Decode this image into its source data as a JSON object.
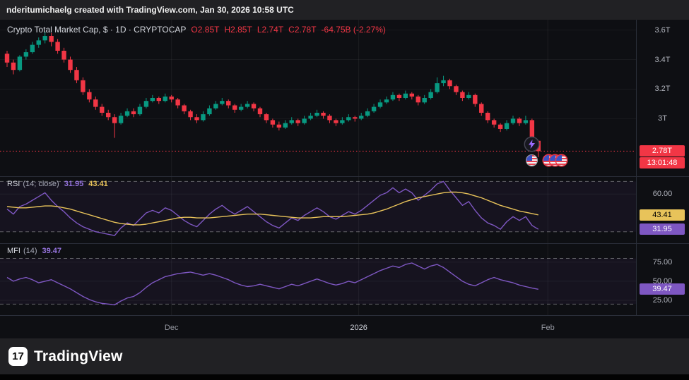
{
  "topbar": {
    "attribution": "nderitumichaelg created with TradingView.com, Jan 30, 2026 10:58 UTC"
  },
  "main_legend": {
    "title": "Crypto Total Market Cap, $ · 1D · CRYPTOCAP",
    "open": "O2.85T",
    "high": "H2.85T",
    "low": "L2.74T",
    "close": "C2.78T",
    "change": "-64.75B (-2.27%)"
  },
  "rsi_legend": {
    "title": "RSI",
    "params": "(14; close)",
    "value": "31.95",
    "ma_value": "43.41"
  },
  "mfi_legend": {
    "title": "MFI",
    "params": "(14)",
    "value": "39.47"
  },
  "footer": {
    "brand": "TradingView",
    "logo_mark": "17"
  },
  "icons": {
    "lightning-event-icon": "purple lightning bolt in dark circle",
    "us-flag-event-icon": "red/white striped circle with blue corner"
  },
  "colors": {
    "background": "#0e0f13",
    "bar": "#212124",
    "up": "#089981",
    "down": "#f23645",
    "purple": "#7e57c2",
    "yellow": "#e8c35a",
    "axis_text": "#b2b5be"
  },
  "chart_data": [
    {
      "type": "candlestick",
      "pane": "price",
      "title": "Crypto Total Market Cap",
      "symbol": "CRYPTOCAP",
      "timeframe": "1D",
      "ylim": [
        2.61,
        3.67
      ],
      "yticks": [
        {
          "label": "3.6T",
          "value": 3.6
        },
        {
          "label": "3.4T",
          "value": 3.4
        },
        {
          "label": "3.2T",
          "value": 3.2
        },
        {
          "label": "3T",
          "value": 3.0
        }
      ],
      "xticks": [
        {
          "label": "Dec",
          "index": 26
        },
        {
          "label": "2026",
          "index": 55.6,
          "major": true
        },
        {
          "label": "Feb",
          "index": 85.5
        }
      ],
      "last_price": {
        "value": 2.78,
        "label": "2.78T",
        "countdown": "13:01:48",
        "color": "#f23645"
      },
      "colors": {
        "up": "#089981",
        "down": "#f23645"
      },
      "candles": [
        [
          3.44,
          3.46,
          3.35,
          3.38
        ],
        [
          3.38,
          3.4,
          3.3,
          3.33
        ],
        [
          3.33,
          3.43,
          3.32,
          3.42
        ],
        [
          3.42,
          3.47,
          3.4,
          3.45
        ],
        [
          3.45,
          3.52,
          3.44,
          3.5
        ],
        [
          3.5,
          3.55,
          3.48,
          3.53
        ],
        [
          3.53,
          3.59,
          3.51,
          3.56
        ],
        [
          3.56,
          3.58,
          3.49,
          3.52
        ],
        [
          3.52,
          3.54,
          3.44,
          3.46
        ],
        [
          3.46,
          3.48,
          3.38,
          3.4
        ],
        [
          3.4,
          3.42,
          3.31,
          3.33
        ],
        [
          3.33,
          3.35,
          3.24,
          3.26
        ],
        [
          3.26,
          3.28,
          3.16,
          3.18
        ],
        [
          3.18,
          3.2,
          3.11,
          3.13
        ],
        [
          3.13,
          3.15,
          3.06,
          3.08
        ],
        [
          3.08,
          3.1,
          3.02,
          3.04
        ],
        [
          3.04,
          3.06,
          2.99,
          3.01
        ],
        [
          3.01,
          3.03,
          2.87,
          2.97
        ],
        [
          2.97,
          3.04,
          2.96,
          3.02
        ],
        [
          3.02,
          3.07,
          3.01,
          3.05
        ],
        [
          3.05,
          3.07,
          3.01,
          3.03
        ],
        [
          3.03,
          3.1,
          3.02,
          3.08
        ],
        [
          3.08,
          3.14,
          3.07,
          3.12
        ],
        [
          3.12,
          3.16,
          3.11,
          3.14
        ],
        [
          3.14,
          3.15,
          3.1,
          3.12
        ],
        [
          3.12,
          3.17,
          3.11,
          3.15
        ],
        [
          3.15,
          3.16,
          3.11,
          3.13
        ],
        [
          3.13,
          3.14,
          3.07,
          3.09
        ],
        [
          3.09,
          3.1,
          3.03,
          3.05
        ],
        [
          3.05,
          3.06,
          2.99,
          3.01
        ],
        [
          3.01,
          3.03,
          2.97,
          2.99
        ],
        [
          2.99,
          3.05,
          2.98,
          3.03
        ],
        [
          3.03,
          3.09,
          3.02,
          3.07
        ],
        [
          3.07,
          3.12,
          3.06,
          3.1
        ],
        [
          3.1,
          3.14,
          3.09,
          3.12
        ],
        [
          3.12,
          3.13,
          3.07,
          3.09
        ],
        [
          3.09,
          3.1,
          3.04,
          3.06
        ],
        [
          3.06,
          3.1,
          3.05,
          3.08
        ],
        [
          3.08,
          3.12,
          3.07,
          3.1
        ],
        [
          3.1,
          3.11,
          3.05,
          3.07
        ],
        [
          3.07,
          3.08,
          3.01,
          3.03
        ],
        [
          3.03,
          3.04,
          2.97,
          2.99
        ],
        [
          2.99,
          3.0,
          2.94,
          2.96
        ],
        [
          2.96,
          2.98,
          2.92,
          2.94
        ],
        [
          2.94,
          2.99,
          2.93,
          2.97
        ],
        [
          2.97,
          3.01,
          2.96,
          2.99
        ],
        [
          2.99,
          3.0,
          2.95,
          2.97
        ],
        [
          2.97,
          3.02,
          2.96,
          3.0
        ],
        [
          3.0,
          3.04,
          2.99,
          3.02
        ],
        [
          3.02,
          3.06,
          3.01,
          3.04
        ],
        [
          3.04,
          3.05,
          3.0,
          3.02
        ],
        [
          3.02,
          3.03,
          2.97,
          2.99
        ],
        [
          2.99,
          3.0,
          2.95,
          2.97
        ],
        [
          2.97,
          3.01,
          2.96,
          2.99
        ],
        [
          2.99,
          3.03,
          2.98,
          3.01
        ],
        [
          3.01,
          3.02,
          2.98,
          3.0
        ],
        [
          3.0,
          3.04,
          2.99,
          3.02
        ],
        [
          3.02,
          3.07,
          3.01,
          3.05
        ],
        [
          3.05,
          3.1,
          3.04,
          3.08
        ],
        [
          3.08,
          3.13,
          3.07,
          3.11
        ],
        [
          3.11,
          3.15,
          3.1,
          3.13
        ],
        [
          3.13,
          3.18,
          3.12,
          3.16
        ],
        [
          3.16,
          3.17,
          3.12,
          3.14
        ],
        [
          3.14,
          3.19,
          3.13,
          3.17
        ],
        [
          3.17,
          3.18,
          3.13,
          3.15
        ],
        [
          3.15,
          3.16,
          3.09,
          3.11
        ],
        [
          3.11,
          3.16,
          3.1,
          3.14
        ],
        [
          3.14,
          3.2,
          3.13,
          3.18
        ],
        [
          3.18,
          3.28,
          3.17,
          3.24
        ],
        [
          3.24,
          3.29,
          3.22,
          3.26
        ],
        [
          3.26,
          3.27,
          3.2,
          3.22
        ],
        [
          3.22,
          3.23,
          3.16,
          3.18
        ],
        [
          3.18,
          3.19,
          3.12,
          3.14
        ],
        [
          3.14,
          3.18,
          3.13,
          3.16
        ],
        [
          3.16,
          3.17,
          3.08,
          3.1
        ],
        [
          3.1,
          3.11,
          3.02,
          3.04
        ],
        [
          3.04,
          3.05,
          2.97,
          2.99
        ],
        [
          2.99,
          3.0,
          2.94,
          2.96
        ],
        [
          2.96,
          2.97,
          2.91,
          2.93
        ],
        [
          2.93,
          2.99,
          2.92,
          2.97
        ],
        [
          2.97,
          3.02,
          2.96,
          3.0
        ],
        [
          3.0,
          3.01,
          2.95,
          2.97
        ],
        [
          2.97,
          3.02,
          2.96,
          2.99
        ],
        [
          2.99,
          3.0,
          2.84,
          2.86
        ],
        [
          2.85,
          2.85,
          2.74,
          2.78
        ]
      ]
    },
    {
      "type": "line",
      "pane": "rsi",
      "name": "RSI (14; close)",
      "ylim": [
        22,
        73
      ],
      "levels": [
        70,
        30
      ],
      "yticks": [
        {
          "label": "60.00",
          "value": 60
        }
      ],
      "series": [
        {
          "name": "RSI",
          "color": "#7e57c2",
          "last": 31.95,
          "values": [
            48,
            44,
            50,
            52,
            55,
            58,
            61,
            55,
            50,
            46,
            41,
            37,
            34,
            32,
            30,
            29,
            28,
            27,
            33,
            37,
            35,
            40,
            45,
            47,
            45,
            49,
            47,
            43,
            39,
            36,
            34,
            39,
            44,
            48,
            51,
            47,
            44,
            47,
            50,
            46,
            42,
            38,
            35,
            33,
            37,
            41,
            39,
            43,
            46,
            49,
            46,
            42,
            40,
            43,
            46,
            44,
            47,
            51,
            55,
            59,
            61,
            65,
            61,
            64,
            61,
            55,
            59,
            63,
            68,
            70,
            63,
            57,
            51,
            54,
            47,
            41,
            37,
            35,
            32,
            38,
            42,
            39,
            42,
            35,
            31.95
          ]
        },
        {
          "name": "RSI-based MA",
          "color": "#e8c35a",
          "text_color": "#000000",
          "last": 43.41,
          "values": [
            50,
            49.5,
            49,
            49,
            49.5,
            50,
            50.5,
            50.5,
            50,
            49,
            48,
            46.5,
            45,
            43.5,
            42,
            40.5,
            39,
            37.5,
            36.5,
            36,
            35.5,
            35.5,
            36,
            37,
            38,
            39,
            40,
            41,
            41.5,
            41.5,
            41,
            41,
            41,
            41.5,
            42,
            42.5,
            43,
            43.5,
            44,
            44,
            44,
            43.5,
            43,
            42.5,
            42,
            41.5,
            41,
            41,
            41,
            41.5,
            42,
            42,
            42,
            42,
            42.5,
            43,
            43.5,
            44,
            45,
            46.5,
            48,
            50,
            52,
            54,
            55.5,
            57,
            58,
            59,
            60,
            61,
            61.5,
            61.5,
            61,
            60,
            58.5,
            57,
            55,
            53,
            51,
            49.5,
            48,
            46.5,
            45.5,
            44.5,
            43.41
          ]
        }
      ]
    },
    {
      "type": "line",
      "pane": "mfi",
      "name": "MFI (14)",
      "ylim": [
        12,
        98
      ],
      "levels": [
        80,
        20
      ],
      "yticks": [
        {
          "label": "75.00",
          "value": 75
        },
        {
          "label": "50.00",
          "value": 50
        },
        {
          "label": "25.00",
          "value": 25
        }
      ],
      "series": [
        {
          "name": "MFI",
          "color": "#7e57c2",
          "last": 39.47,
          "values": [
            55,
            50,
            53,
            55,
            52,
            48,
            50,
            52,
            48,
            44,
            40,
            35,
            30,
            26,
            23,
            21,
            20,
            19,
            24,
            28,
            30,
            35,
            42,
            48,
            52,
            56,
            58,
            60,
            61,
            62,
            60,
            58,
            60,
            58,
            55,
            52,
            48,
            45,
            43,
            44,
            46,
            44,
            42,
            40,
            43,
            46,
            44,
            47,
            50,
            53,
            50,
            47,
            45,
            47,
            50,
            48,
            52,
            56,
            60,
            64,
            67,
            70,
            68,
            72,
            74,
            70,
            66,
            70,
            72,
            68,
            62,
            56,
            50,
            46,
            44,
            48,
            52,
            55,
            52,
            50,
            48,
            45,
            43,
            41,
            39.47
          ]
        }
      ]
    }
  ]
}
